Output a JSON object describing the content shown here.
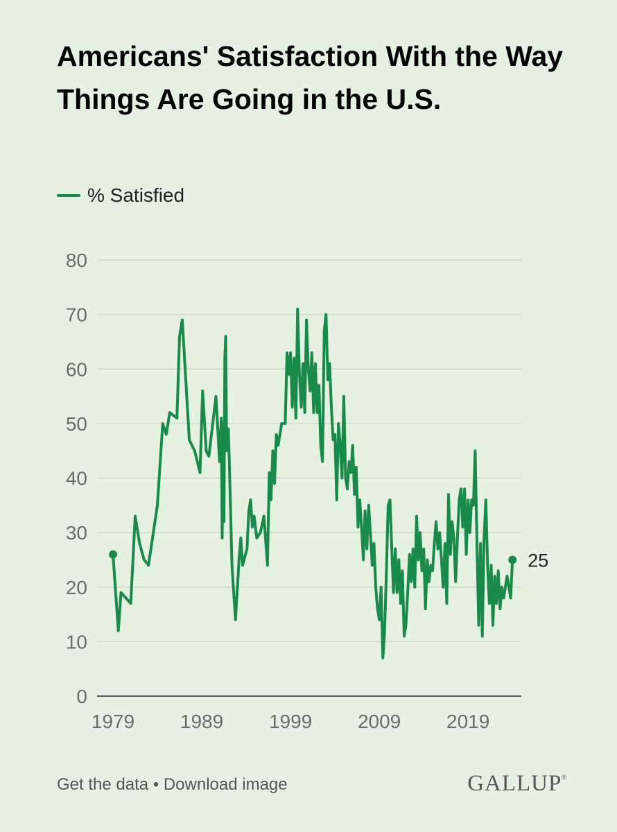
{
  "title": "Americans' Satisfaction With the Way Things Are Going in the U.S.",
  "footer": {
    "get_data": "Get the data",
    "separator": "•",
    "download": "Download image"
  },
  "brand": {
    "name": "GALLUP",
    "mark": "®"
  },
  "colors": {
    "background": "#e6f2e1",
    "line": "#1a8a4a",
    "grid": "#cad8c5",
    "axis": "#555555",
    "tick_text": "#6b6b6b"
  },
  "chart_data": {
    "type": "line",
    "title": "Americans' Satisfaction With the Way Things Are Going in the U.S.",
    "xlabel": "",
    "ylabel": "",
    "xlim": [
      1979,
      2025
    ],
    "ylim": [
      0,
      80
    ],
    "yticks": [
      0,
      10,
      20,
      30,
      40,
      50,
      60,
      70,
      80
    ],
    "xticks": [
      1979,
      1989,
      1999,
      2009,
      2019
    ],
    "grid": true,
    "legend_position": "top-left",
    "end_label": "25",
    "series": [
      {
        "name": "% Satisfied",
        "color": "#1a8a4a",
        "points": [
          [
            1979.0,
            26
          ],
          [
            1979.6,
            12
          ],
          [
            1979.9,
            19
          ],
          [
            1981.0,
            17
          ],
          [
            1981.5,
            33
          ],
          [
            1982.0,
            28
          ],
          [
            1982.5,
            25
          ],
          [
            1983.0,
            24
          ],
          [
            1984.0,
            35
          ],
          [
            1984.6,
            50
          ],
          [
            1985.0,
            48
          ],
          [
            1985.4,
            52
          ],
          [
            1986.2,
            51
          ],
          [
            1986.5,
            66
          ],
          [
            1986.8,
            69
          ],
          [
            1987.6,
            47
          ],
          [
            1988.2,
            45
          ],
          [
            1988.8,
            41
          ],
          [
            1989.1,
            56
          ],
          [
            1989.5,
            45
          ],
          [
            1989.8,
            44
          ],
          [
            1990.6,
            55
          ],
          [
            1991.0,
            43
          ],
          [
            1991.2,
            51
          ],
          [
            1991.3,
            29
          ],
          [
            1991.4,
            50
          ],
          [
            1991.5,
            32
          ],
          [
            1991.6,
            62
          ],
          [
            1991.7,
            66
          ],
          [
            1991.8,
            45
          ],
          [
            1992.0,
            49
          ],
          [
            1992.2,
            37
          ],
          [
            1992.4,
            24
          ],
          [
            1992.6,
            19
          ],
          [
            1992.8,
            14
          ],
          [
            1993.2,
            25
          ],
          [
            1993.4,
            29
          ],
          [
            1993.6,
            24
          ],
          [
            1994.1,
            27
          ],
          [
            1994.3,
            34
          ],
          [
            1994.5,
            36
          ],
          [
            1994.7,
            31
          ],
          [
            1994.9,
            33
          ],
          [
            1995.2,
            29
          ],
          [
            1995.6,
            30
          ],
          [
            1996.0,
            33
          ],
          [
            1996.4,
            24
          ],
          [
            1996.6,
            41
          ],
          [
            1996.8,
            36
          ],
          [
            1997.0,
            45
          ],
          [
            1997.2,
            39
          ],
          [
            1997.4,
            48
          ],
          [
            1997.6,
            46
          ],
          [
            1998.0,
            50
          ],
          [
            1998.4,
            50
          ],
          [
            1998.6,
            63
          ],
          [
            1998.8,
            59
          ],
          [
            1999.0,
            63
          ],
          [
            1999.2,
            53
          ],
          [
            1999.4,
            62
          ],
          [
            1999.6,
            51
          ],
          [
            1999.8,
            71
          ],
          [
            2000.0,
            59
          ],
          [
            2000.2,
            53
          ],
          [
            2000.4,
            61
          ],
          [
            2000.6,
            52
          ],
          [
            2000.8,
            69
          ],
          [
            2001.0,
            60
          ],
          [
            2001.2,
            56
          ],
          [
            2001.4,
            63
          ],
          [
            2001.6,
            52
          ],
          [
            2001.8,
            61
          ],
          [
            2002.0,
            52
          ],
          [
            2002.2,
            57
          ],
          [
            2002.4,
            46
          ],
          [
            2002.6,
            43
          ],
          [
            2002.8,
            67
          ],
          [
            2003.0,
            70
          ],
          [
            2003.2,
            58
          ],
          [
            2003.4,
            61
          ],
          [
            2003.6,
            53
          ],
          [
            2003.8,
            47
          ],
          [
            2004.0,
            48
          ],
          [
            2004.2,
            36
          ],
          [
            2004.4,
            50
          ],
          [
            2004.6,
            46
          ],
          [
            2004.8,
            40
          ],
          [
            2005.0,
            55
          ],
          [
            2005.2,
            40
          ],
          [
            2005.4,
            38
          ],
          [
            2005.6,
            43
          ],
          [
            2005.8,
            41
          ],
          [
            2006.0,
            46
          ],
          [
            2006.2,
            37
          ],
          [
            2006.4,
            42
          ],
          [
            2006.6,
            31
          ],
          [
            2006.8,
            36
          ],
          [
            2007.0,
            31
          ],
          [
            2007.2,
            25
          ],
          [
            2007.4,
            34
          ],
          [
            2007.6,
            27
          ],
          [
            2007.8,
            35
          ],
          [
            2008.0,
            30
          ],
          [
            2008.2,
            24
          ],
          [
            2008.4,
            28
          ],
          [
            2008.6,
            20
          ],
          [
            2008.8,
            16
          ],
          [
            2009.0,
            14
          ],
          [
            2009.2,
            20
          ],
          [
            2009.4,
            7
          ],
          [
            2009.6,
            12
          ],
          [
            2009.8,
            23
          ],
          [
            2010.0,
            35
          ],
          [
            2010.2,
            36
          ],
          [
            2010.4,
            27
          ],
          [
            2010.6,
            19
          ],
          [
            2010.8,
            27
          ],
          [
            2011.0,
            19
          ],
          [
            2011.2,
            25
          ],
          [
            2011.4,
            17
          ],
          [
            2011.6,
            23
          ],
          [
            2011.8,
            11
          ],
          [
            2012.0,
            13
          ],
          [
            2012.2,
            19
          ],
          [
            2012.4,
            26
          ],
          [
            2012.6,
            21
          ],
          [
            2012.8,
            27
          ],
          [
            2013.0,
            20
          ],
          [
            2013.2,
            33
          ],
          [
            2013.4,
            25
          ],
          [
            2013.6,
            30
          ],
          [
            2013.8,
            23
          ],
          [
            2014.0,
            27
          ],
          [
            2014.2,
            16
          ],
          [
            2014.4,
            25
          ],
          [
            2014.6,
            21
          ],
          [
            2014.8,
            24
          ],
          [
            2015.0,
            23
          ],
          [
            2015.2,
            28
          ],
          [
            2015.4,
            32
          ],
          [
            2015.6,
            27
          ],
          [
            2015.8,
            30
          ],
          [
            2016.0,
            25
          ],
          [
            2016.2,
            20
          ],
          [
            2016.4,
            28
          ],
          [
            2016.6,
            17
          ],
          [
            2016.8,
            37
          ],
          [
            2017.0,
            26
          ],
          [
            2017.2,
            32
          ],
          [
            2017.4,
            29
          ],
          [
            2017.6,
            21
          ],
          [
            2017.8,
            29
          ],
          [
            2018.0,
            36
          ],
          [
            2018.2,
            38
          ],
          [
            2018.4,
            31
          ],
          [
            2018.6,
            38
          ],
          [
            2018.8,
            26
          ],
          [
            2019.0,
            36
          ],
          [
            2019.2,
            30
          ],
          [
            2019.4,
            36
          ],
          [
            2019.6,
            35
          ],
          [
            2019.8,
            45
          ],
          [
            2020.0,
            28
          ],
          [
            2020.2,
            13
          ],
          [
            2020.4,
            28
          ],
          [
            2020.6,
            11
          ],
          [
            2020.8,
            29
          ],
          [
            2021.0,
            36
          ],
          [
            2021.2,
            24
          ],
          [
            2021.4,
            17
          ],
          [
            2021.6,
            24
          ],
          [
            2021.8,
            13
          ],
          [
            2022.0,
            22
          ],
          [
            2022.2,
            17
          ],
          [
            2022.4,
            23
          ],
          [
            2022.6,
            16
          ],
          [
            2022.8,
            20
          ],
          [
            2023.0,
            18
          ],
          [
            2023.2,
            20
          ],
          [
            2023.4,
            22
          ],
          [
            2023.6,
            20
          ],
          [
            2023.8,
            18
          ],
          [
            2024.0,
            25
          ]
        ]
      }
    ]
  }
}
